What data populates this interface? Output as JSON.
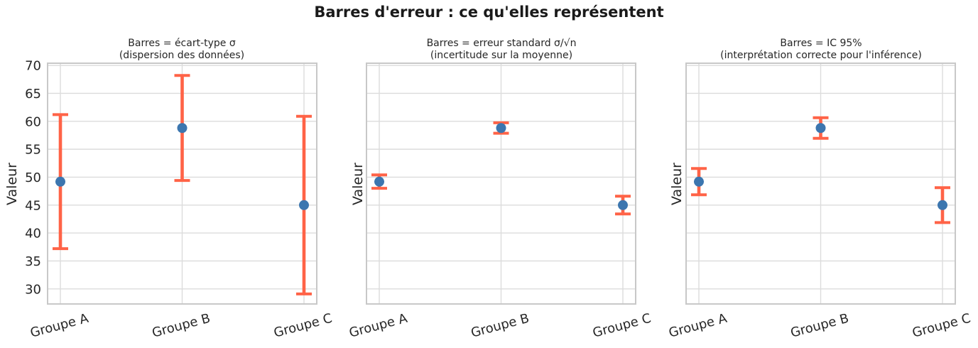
{
  "figure": {
    "title": "Barres d'erreur : ce qu'elles représentent",
    "colors": {
      "point": "#3c76af",
      "error_bar": "#ff6347",
      "grid": "#dcdcdc",
      "axis_border": "#c8c8c8",
      "text": "#262626"
    }
  },
  "chart_data": [
    {
      "type": "scatter",
      "title": "Barres = écart-type σ",
      "subtitle": "(dispersion des données)",
      "categories": [
        "Groupe A",
        "Groupe B",
        "Groupe C"
      ],
      "means": [
        49.2,
        58.8,
        45.0
      ],
      "error_values": [
        12.0,
        9.4,
        15.9
      ],
      "error_bar_meaning": "écart-type σ",
      "ylabel": "Valeur",
      "yticks": [
        30,
        35,
        40,
        45,
        50,
        55,
        60,
        65,
        70
      ],
      "show_ytick_labels": true,
      "ylim": [
        27.3,
        70.4
      ],
      "grid": true,
      "legend": null
    },
    {
      "type": "scatter",
      "title": "Barres = erreur standard σ/√n",
      "subtitle": "(incertitude sur la moyenne)",
      "categories": [
        "Groupe A",
        "Groupe B",
        "Groupe C"
      ],
      "means": [
        49.2,
        58.8,
        45.0
      ],
      "error_values": [
        1.2,
        0.94,
        1.59
      ],
      "error_bar_meaning": "erreur standard σ/√n",
      "ylabel": "Valeur",
      "yticks": [
        30,
        35,
        40,
        45,
        50,
        55,
        60,
        65,
        70
      ],
      "show_ytick_labels": false,
      "ylim": [
        27.3,
        70.4
      ],
      "grid": true,
      "legend": null
    },
    {
      "type": "scatter",
      "title": "Barres = IC 95%",
      "subtitle": "(interprétation correcte pour l'inférence)",
      "categories": [
        "Groupe A",
        "Groupe B",
        "Groupe C"
      ],
      "means": [
        49.2,
        58.8,
        45.0
      ],
      "error_values": [
        2.35,
        1.84,
        3.12
      ],
      "error_bar_meaning": "IC 95%",
      "ylabel": "Valeur",
      "yticks": [
        30,
        35,
        40,
        45,
        50,
        55,
        60,
        65,
        70
      ],
      "show_ytick_labels": false,
      "ylim": [
        27.3,
        70.4
      ],
      "grid": true,
      "legend": null
    }
  ]
}
